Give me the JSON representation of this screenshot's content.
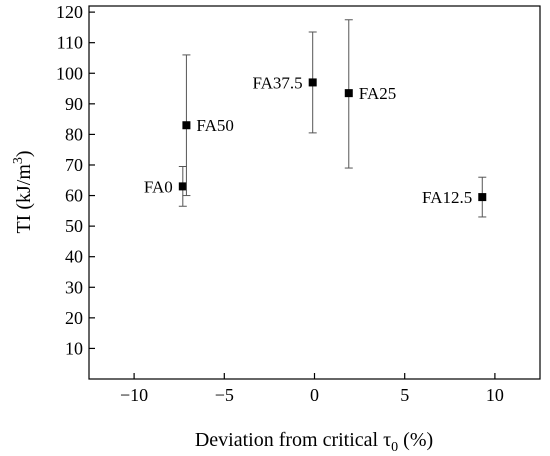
{
  "chart_data": {
    "type": "scatter",
    "xlabel": "Deviation from critical τ",
    "xlabel_sub": "0",
    "xlabel_unit": " (%)",
    "ylabel": "TI (kJ/m",
    "ylabel_sup": "3",
    "ylabel_close": ")",
    "xlim": [
      -12.5,
      12.5
    ],
    "ylim": [
      0,
      122
    ],
    "xticks": [
      -10,
      -5,
      0,
      5,
      10
    ],
    "xtick_labels": [
      "−10",
      "−5",
      "0",
      "5",
      "10"
    ],
    "yticks": [
      10,
      20,
      30,
      40,
      50,
      60,
      70,
      80,
      90,
      100,
      110,
      120
    ],
    "ytick_labels": [
      "10",
      "20",
      "30",
      "40",
      "50",
      "60",
      "70",
      "80",
      "90",
      "100",
      "110",
      "120"
    ],
    "grid": false,
    "legend": "none",
    "points": [
      {
        "label": "FA0",
        "x": -7.3,
        "y": 63,
        "err_low": 56.5,
        "err_high": 69.5,
        "label_pos": "left"
      },
      {
        "label": "FA12.5",
        "x": 9.3,
        "y": 59.5,
        "err_low": 53,
        "err_high": 66,
        "label_pos": "left"
      },
      {
        "label": "FA25",
        "x": 1.9,
        "y": 93.5,
        "err_low": 69,
        "err_high": 117.5,
        "label_pos": "right"
      },
      {
        "label": "FA37.5",
        "x": -0.1,
        "y": 97,
        "err_low": 80.5,
        "err_high": 113.5,
        "label_pos": "left"
      },
      {
        "label": "FA50",
        "x": -7.1,
        "y": 83,
        "err_low": 60,
        "err_high": 106,
        "label_pos": "right"
      }
    ],
    "marker_color": "#000000"
  }
}
